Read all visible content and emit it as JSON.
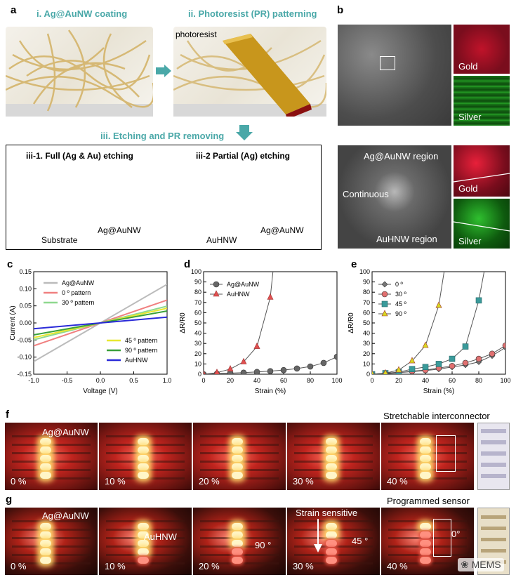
{
  "panel_letters": {
    "a": "a",
    "b": "b",
    "c": "c",
    "d": "d",
    "e": "e",
    "f": "f",
    "g": "g"
  },
  "panel_a": {
    "step1": "i. Ag@AuNW coating",
    "step2": "ii. Photoresist (PR) patterning",
    "photoresist_label": "photoresist",
    "step3": "iii. Etching and PR removing",
    "sub1": "iii-1. Full (Ag & Au) etching",
    "sub2": "iii-2 Partial (Ag) etching",
    "substrate": "Substrate",
    "agaunw_left": "Ag@AuNW",
    "auhnw": "AuHNW",
    "agaunw_right": "Ag@AuNW"
  },
  "panel_b": {
    "gold1": "Gold",
    "silver1": "Silver",
    "region_top": "Ag@AuNW region",
    "continuous": "Continuous",
    "region_bottom": "AuHNW region",
    "gold2": "Gold",
    "silver2": "Silver"
  },
  "panel_f": {
    "caption": "Stretchable interconnector",
    "material": "Ag@AuNW",
    "strains": [
      "0 %",
      "10 %",
      "20 %",
      "30 %",
      "40 %"
    ]
  },
  "panel_g": {
    "caption": "Programmed sensor",
    "material_top": "Ag@AuNW",
    "material_bottom": "AuHNW",
    "strain_sensitive": "Strain sensitive",
    "angle90": "90 °",
    "angle45": "45 °",
    "angle0": "0°",
    "strains": [
      "0 %",
      "10 %",
      "20 %",
      "30 %",
      "40 %"
    ],
    "watermark": "MEMS"
  },
  "chart_data": [
    {
      "type": "line",
      "panel": "c",
      "xlabel": "Voltage (V)",
      "ylabel": "Current (A)",
      "xlim": [
        -1.0,
        1.0
      ],
      "ylim": [
        -0.15,
        0.15
      ],
      "xticks": [
        "-1.0",
        "-0.5",
        "0.0",
        "0.5",
        "1.0"
      ],
      "yticks": [
        "0.15",
        "0.10",
        "0.05",
        "0.00",
        "-0.05",
        "-0.10",
        "-0.15"
      ],
      "series": [
        {
          "name": "Ag@AuNW",
          "color": "#bbbbbb",
          "x": [
            -1.0,
            1.0
          ],
          "y": [
            -0.113,
            0.113
          ]
        },
        {
          "name": "0 º pattern",
          "color": "#f08080",
          "x": [
            -1.0,
            1.0
          ],
          "y": [
            -0.067,
            0.067
          ]
        },
        {
          "name": "30 º pattern",
          "color": "#8fd88f",
          "x": [
            -1.0,
            1.0
          ],
          "y": [
            -0.049,
            0.049
          ]
        },
        {
          "name": "45 º pattern",
          "color": "#e8e830",
          "x": [
            -1.0,
            1.0
          ],
          "y": [
            -0.043,
            0.043
          ]
        },
        {
          "name": "90 º pattern",
          "color": "#3aa03a",
          "x": [
            -1.0,
            1.0
          ],
          "y": [
            -0.035,
            0.035
          ]
        },
        {
          "name": "AuHNW",
          "color": "#2a2ad8",
          "x": [
            -1.0,
            1.0
          ],
          "y": [
            -0.017,
            0.017
          ]
        }
      ]
    },
    {
      "type": "line",
      "panel": "d",
      "xlabel": "Strain (%)",
      "ylabel": "ΔR/R0",
      "xlim": [
        0,
        100
      ],
      "ylim": [
        0,
        100
      ],
      "xticks": [
        "0",
        "20",
        "40",
        "60",
        "80",
        "100"
      ],
      "yticks": [
        "0",
        "10",
        "20",
        "30",
        "40",
        "50",
        "60",
        "70",
        "80",
        "90",
        "100"
      ],
      "series": [
        {
          "name": "Ag@AuNW",
          "color": "#666666",
          "marker": "circle",
          "x": [
            0,
            10,
            20,
            30,
            40,
            50,
            60,
            70,
            80,
            90,
            100
          ],
          "y": [
            0,
            0.5,
            1,
            1.5,
            2.2,
            3,
            4,
            5.5,
            7.5,
            11,
            17
          ]
        },
        {
          "name": "AuHNW",
          "color": "#e05050",
          "marker": "triangle",
          "x": [
            0,
            10,
            20,
            30,
            40,
            50,
            52
          ],
          "y": [
            0,
            1.5,
            5,
            12,
            27,
            75,
            100
          ]
        }
      ]
    },
    {
      "type": "line",
      "panel": "e",
      "xlabel": "Strain (%)",
      "ylabel": "ΔR/R0",
      "xlim": [
        0,
        100
      ],
      "ylim": [
        0,
        100
      ],
      "xticks": [
        "0",
        "20",
        "40",
        "60",
        "80",
        "100"
      ],
      "yticks": [
        "0",
        "10",
        "20",
        "30",
        "40",
        "50",
        "60",
        "70",
        "80",
        "90",
        "100"
      ],
      "series": [
        {
          "name": "0 º",
          "color": "#777777",
          "marker": "diamond",
          "x": [
            0,
            10,
            20,
            30,
            40,
            50,
            60,
            70,
            80,
            90,
            100
          ],
          "y": [
            0,
            0.5,
            1.5,
            2.5,
            3.5,
            5,
            7,
            9,
            12,
            18,
            26
          ]
        },
        {
          "name": "30 º",
          "color": "#e07070",
          "marker": "circle",
          "x": [
            0,
            10,
            20,
            30,
            40,
            50,
            60,
            70,
            80,
            90,
            100
          ],
          "y": [
            0,
            0.5,
            1.5,
            3,
            4,
            6,
            8,
            11,
            15,
            20,
            28
          ]
        },
        {
          "name": "45 º",
          "color": "#3a9a9a",
          "marker": "square",
          "x": [
            0,
            10,
            20,
            30,
            40,
            50,
            60,
            70,
            80,
            84
          ],
          "y": [
            0,
            1,
            2,
            5,
            7,
            10,
            15,
            27,
            72,
            100
          ]
        },
        {
          "name": "90 º",
          "color": "#d8d820",
          "marker": "triangle",
          "x": [
            0,
            10,
            20,
            30,
            40,
            50,
            54
          ],
          "y": [
            0,
            1,
            4,
            13,
            28,
            67,
            100
          ]
        }
      ]
    }
  ]
}
